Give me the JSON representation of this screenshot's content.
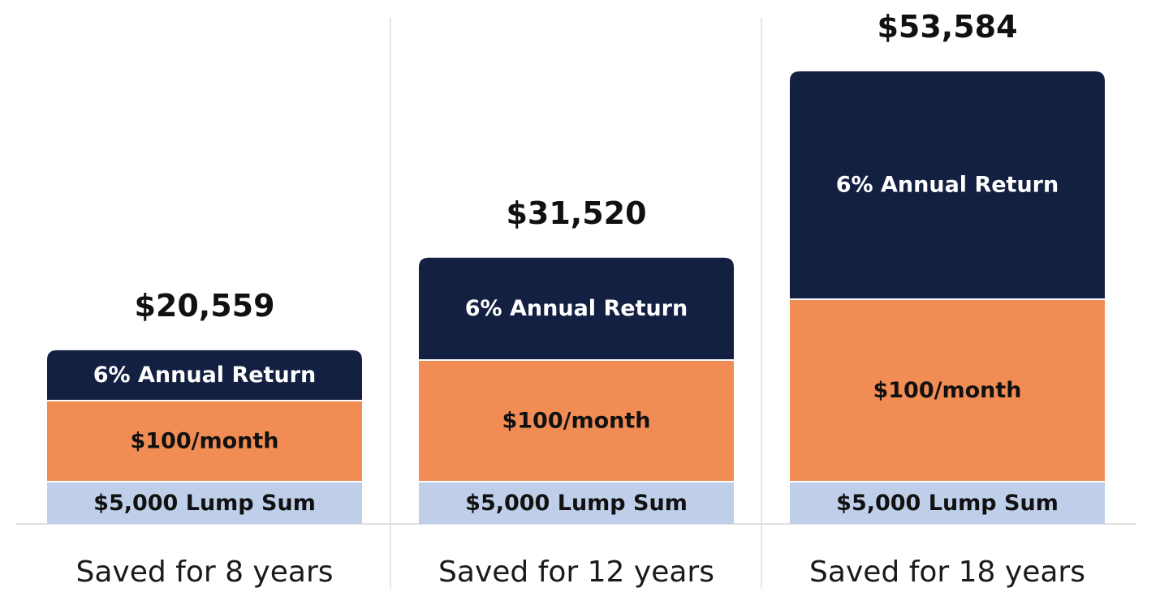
{
  "chart_data": {
    "type": "bar",
    "stacked": true,
    "categories": [
      "Saved for 8 years",
      "Saved for 12 years",
      "Saved for 18 years"
    ],
    "totals": [
      "$20,559",
      "$31,520",
      "$53,584"
    ],
    "total_values": [
      20559,
      31520,
      53584
    ],
    "series": [
      {
        "label": "$5,000 Lump Sum",
        "values": [
          5000,
          5000,
          5000
        ],
        "color": "#bfcfea",
        "text_color": "#111111"
      },
      {
        "label": "$100/month",
        "values": [
          9600,
          14400,
          21600
        ],
        "color": "#f28c55",
        "text_color": "#111111"
      },
      {
        "label": "6% Annual Return",
        "values": [
          5959,
          12120,
          26984
        ],
        "color": "#132042",
        "text_color": "#ffffff"
      }
    ],
    "grid": false,
    "legend": "none"
  }
}
